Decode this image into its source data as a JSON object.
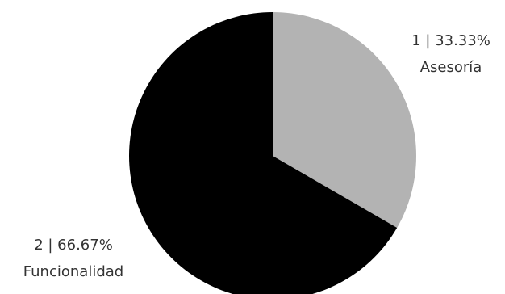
{
  "chart_data": {
    "type": "pie",
    "slices": [
      {
        "category": "Asesoría",
        "value": 1,
        "percent_label": "1 | 33.33%",
        "color": "#b3b3b3"
      },
      {
        "category": "Funcionalidad",
        "value": 2,
        "percent_label": "2 | 66.67%",
        "color": "#000000"
      }
    ],
    "start_angle": "12 o'clock, clockwise"
  }
}
